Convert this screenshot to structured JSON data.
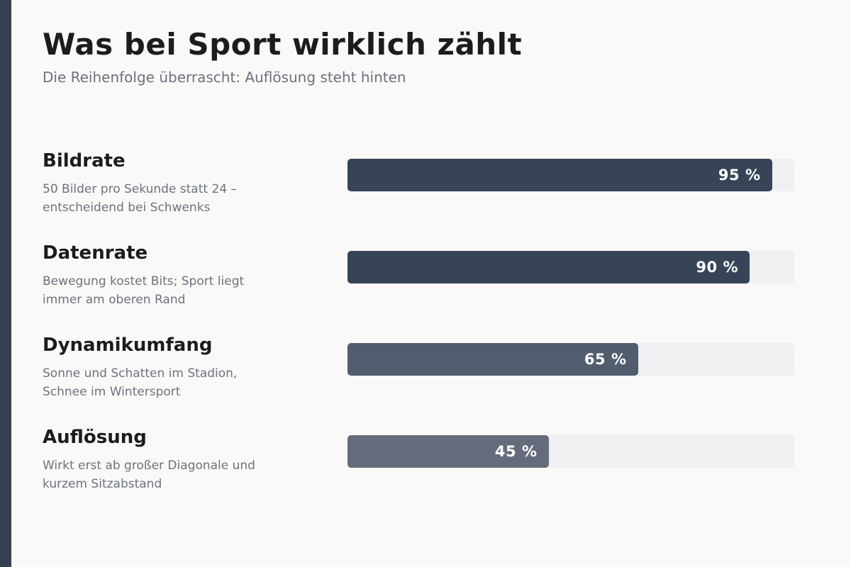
{
  "title": "Was bei Sport wirklich zählt",
  "subtitle": "Die Reihenfolge überrascht: Auflösung steht hinten",
  "colors": {
    "accent_stripe": "#34404f",
    "track": "#eff0f2"
  },
  "chart_data": {
    "type": "bar",
    "orientation": "horizontal",
    "unit": "%",
    "xlim": [
      0,
      100
    ],
    "grid": false,
    "categories": [
      "Bildrate",
      "Datenrate",
      "Dynamikumfang",
      "Auflösung"
    ],
    "descriptions": [
      "50 Bilder pro Sekunde statt 24 – entscheidend bei Schwenks",
      "Bewegung kostet Bits; Sport liegt immer am oberen Rand",
      "Sonne und Schatten im Stadion, Schnee im Wintersport",
      "Wirkt erst ab großer Diagonale und kurzem Sitzabstand"
    ],
    "values": [
      95,
      90,
      65,
      45
    ],
    "value_labels": [
      "95 %",
      "90 %",
      "65 %",
      "45 %"
    ],
    "bar_colors": [
      "#374457",
      "#374457",
      "#515c6e",
      "#646b7b"
    ]
  }
}
